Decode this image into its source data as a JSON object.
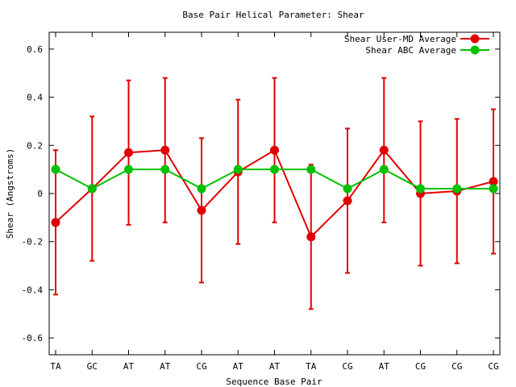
{
  "chart_data": {
    "type": "line",
    "title": "Base Pair Helical Parameter: Shear",
    "xlabel": "Sequence Base Pair",
    "ylabel": "Shear (Angstroms)",
    "categories": [
      "TA",
      "GC",
      "AT",
      "AT",
      "CG",
      "AT",
      "AT",
      "TA",
      "CG",
      "AT",
      "CG",
      "CG",
      "CG"
    ],
    "ylim": [
      -0.67,
      0.67
    ],
    "yticks": [
      -0.6,
      -0.4,
      -0.2,
      0,
      0.2,
      0.4,
      0.6
    ],
    "ytick_labels": [
      "-0.6",
      "-0.4",
      "-0.2",
      "0",
      "0.2",
      "0.4",
      "0.6"
    ],
    "grid": false,
    "legend_position": "top-right",
    "series": [
      {
        "name": "Shear User-MD Average",
        "color": "#e00000",
        "values": [
          -0.12,
          0.02,
          0.17,
          0.18,
          -0.07,
          0.09,
          0.18,
          -0.18,
          -0.03,
          0.18,
          0.0,
          0.01,
          0.05
        ],
        "error_low": [
          -0.42,
          -0.28,
          -0.13,
          -0.12,
          -0.37,
          -0.21,
          -0.12,
          -0.48,
          -0.33,
          -0.12,
          -0.3,
          -0.29,
          -0.25
        ],
        "error_high": [
          0.18,
          0.32,
          0.47,
          0.48,
          0.23,
          0.39,
          0.48,
          0.12,
          0.27,
          0.48,
          0.3,
          0.31,
          0.35
        ]
      },
      {
        "name": "Shear ABC Average",
        "color": "#00c000",
        "values": [
          0.1,
          0.02,
          0.1,
          0.1,
          0.02,
          0.1,
          0.1,
          0.1,
          0.02,
          0.1,
          0.02,
          0.02,
          0.02
        ]
      }
    ]
  }
}
